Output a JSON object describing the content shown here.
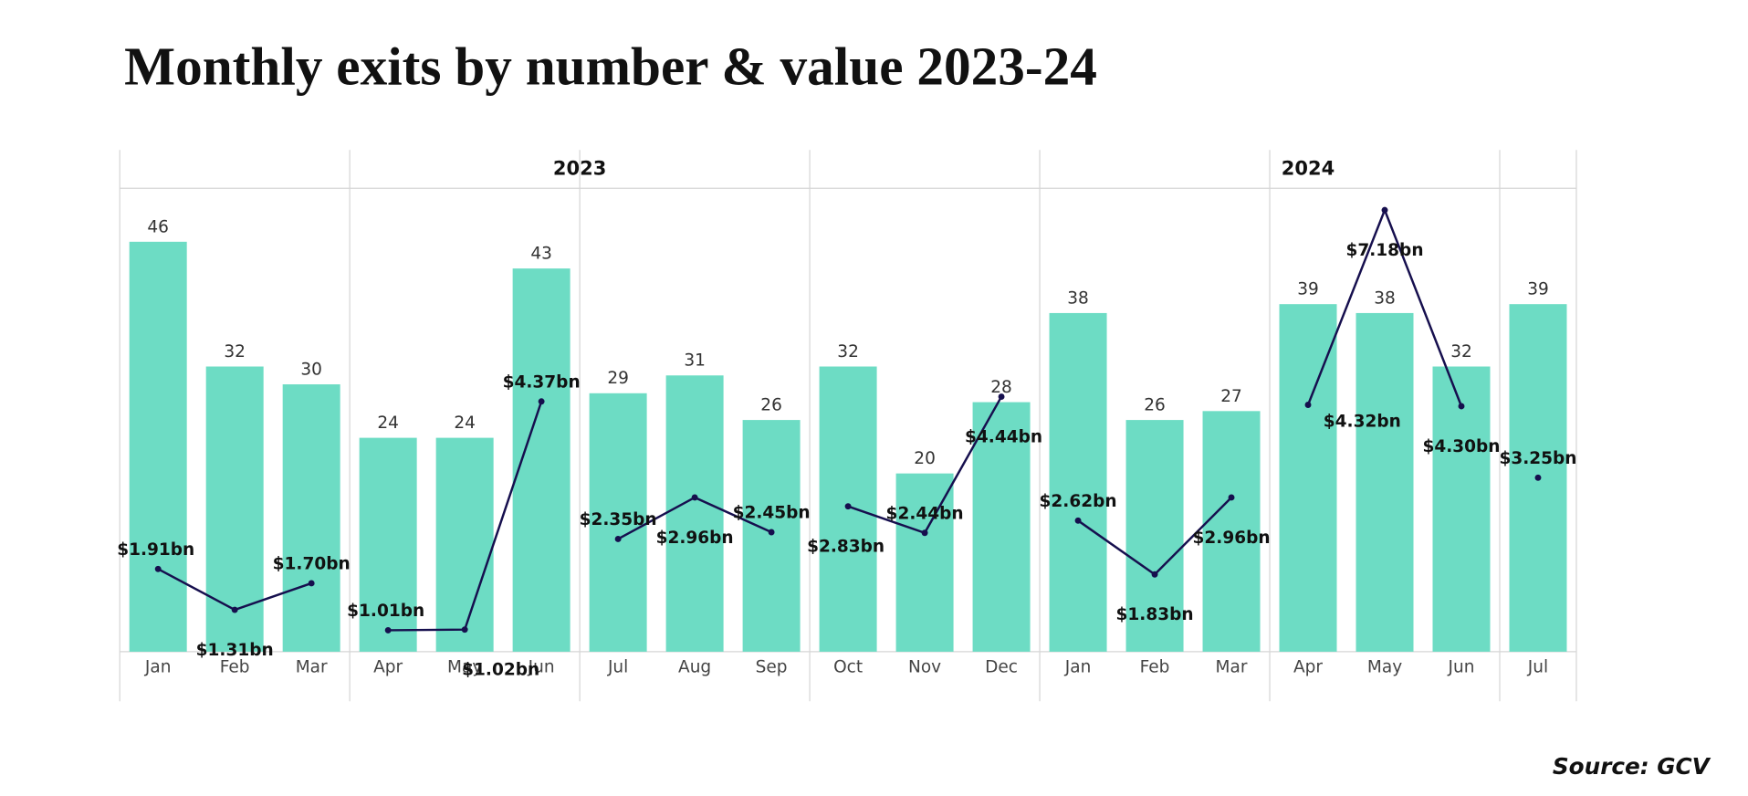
{
  "chart_data": {
    "type": "bar-line",
    "title": "Monthly exits by number & value 2023-24",
    "source": "Source: GCV",
    "groups": [
      {
        "name": "2023",
        "categories": [
          "Jan",
          "Feb",
          "Mar",
          "Apr",
          "May",
          "Jun",
          "Jul",
          "Aug",
          "Sep",
          "Oct",
          "Nov",
          "Dec"
        ]
      },
      {
        "name": "2024",
        "categories": [
          "Jan",
          "Feb",
          "Mar",
          "Apr",
          "May",
          "Jun",
          "Jul"
        ]
      }
    ],
    "series": [
      {
        "type": "bar",
        "color": "#6ddcc4",
        "values": [
          46,
          32,
          30,
          24,
          24,
          43,
          29,
          31,
          26,
          32,
          20,
          28,
          38,
          26,
          27,
          39,
          38,
          32,
          39
        ]
      },
      {
        "type": "line",
        "axis": "y2",
        "color": "#160f4e",
        "values": [
          1.91,
          1.31,
          1.7,
          1.01,
          1.02,
          4.37,
          2.35,
          2.96,
          2.45,
          2.83,
          2.44,
          4.44,
          2.62,
          1.83,
          2.96,
          4.32,
          7.18,
          4.3,
          3.25
        ],
        "value_labels": [
          "$1.91bn",
          "$1.31bn",
          "$1.70bn",
          "$1.01bn",
          "$1.02bn",
          "$4.37bn",
          "$2.35bn",
          "$2.96bn",
          "$2.45bn",
          "$2.83bn",
          "$2.44bn",
          "$4.44bn",
          "$2.62bn",
          "$1.83bn",
          "$2.96bn",
          "$4.32bn",
          "$7.18bn",
          "$4.30bn",
          "$3.25bn"
        ]
      }
    ],
    "ylim": [
      0,
      52
    ],
    "y2lim": [
      0,
      7.5
    ]
  }
}
